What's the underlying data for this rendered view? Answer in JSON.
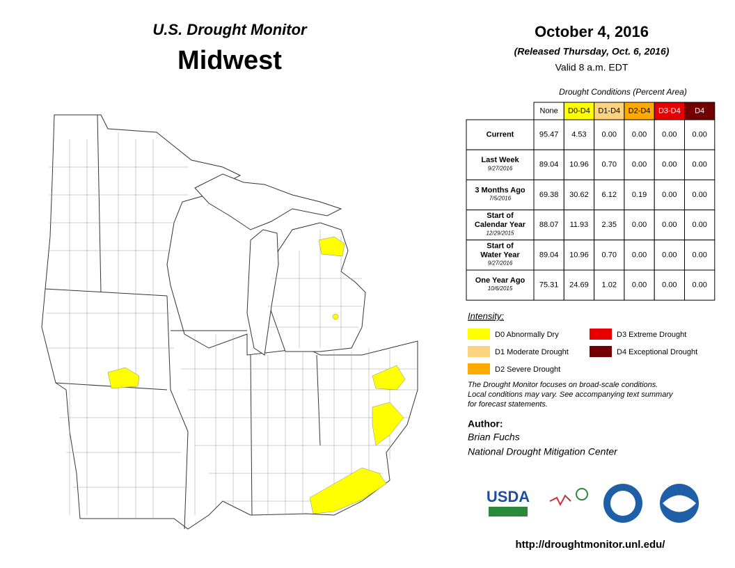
{
  "header": {
    "title": "U.S. Drought Monitor",
    "region": "Midwest",
    "date": "October 4, 2016",
    "released": "(Released Thursday, Oct. 6, 2016)",
    "valid": "Valid  8 a.m. EDT"
  },
  "table": {
    "caption": "Drought Conditions (Percent Area)",
    "columns": [
      "None",
      "D0-D4",
      "D1-D4",
      "D2-D4",
      "D3-D4",
      "D4"
    ],
    "column_colors": [
      "#ffffff",
      "#ffff00",
      "#fcd37f",
      "#ffaa00",
      "#e60000",
      "#730000"
    ],
    "column_text_colors": [
      "#000000",
      "#000000",
      "#000000",
      "#000000",
      "#ffffff",
      "#ffffff"
    ],
    "rows": [
      {
        "label": [
          "Current"
        ],
        "values": [
          "95.47",
          "4.53",
          "0.00",
          "0.00",
          "0.00",
          "0.00"
        ]
      },
      {
        "label": [
          "Last Week"
        ],
        "date": "9/27/2016",
        "values": [
          "89.04",
          "10.96",
          "0.70",
          "0.00",
          "0.00",
          "0.00"
        ]
      },
      {
        "label": [
          "3 Months Ago"
        ],
        "date": "7/5/2016",
        "values": [
          "69.38",
          "30.62",
          "6.12",
          "0.19",
          "0.00",
          "0.00"
        ]
      },
      {
        "label": [
          "Start of",
          "Calendar Year"
        ],
        "date": "12/29/2015",
        "values": [
          "88.07",
          "11.93",
          "2.35",
          "0.00",
          "0.00",
          "0.00"
        ]
      },
      {
        "label": [
          "Start of",
          "Water Year"
        ],
        "date": "9/27/2016",
        "values": [
          "89.04",
          "10.96",
          "0.70",
          "0.00",
          "0.00",
          "0.00"
        ]
      },
      {
        "label": [
          "One Year Ago"
        ],
        "date": "10/6/2015",
        "values": [
          "75.31",
          "24.69",
          "1.02",
          "0.00",
          "0.00",
          "0.00"
        ]
      }
    ]
  },
  "legend": {
    "title": "Intensity:",
    "items": [
      {
        "label": "D0 Abnormally Dry",
        "color": "#ffff00"
      },
      {
        "label": "D1 Moderate Drought",
        "color": "#fcd37f"
      },
      {
        "label": "D2 Severe Drought",
        "color": "#ffaa00"
      },
      {
        "label": "D3 Extreme Drought",
        "color": "#e60000"
      },
      {
        "label": "D4 Exceptional Drought",
        "color": "#730000"
      }
    ]
  },
  "note": [
    "The Drought Monitor focuses on broad-scale conditions.",
    "Local conditions may vary. See accompanying text summary",
    "for forecast statements."
  ],
  "author": {
    "heading": "Author:",
    "lines": [
      "Brian Fuchs",
      "National Drought Mitigation Center"
    ]
  },
  "logos": {
    "usda": "USDA"
  },
  "url": "http://droughtmonitor.unl.edu/"
}
